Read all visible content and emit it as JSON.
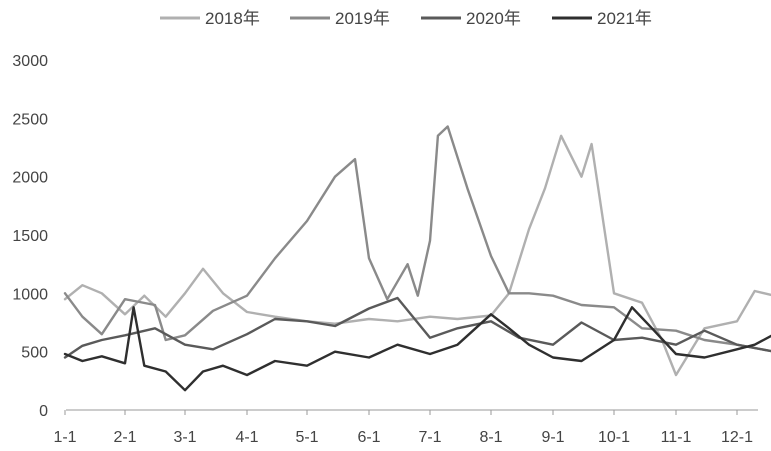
{
  "chart_data": {
    "type": "line",
    "title": "",
    "xlabel": "",
    "ylabel": "",
    "ylim": [
      0,
      3000
    ],
    "yticks": [
      "0",
      "500",
      "1000",
      "1500",
      "2000",
      "2500",
      "3000"
    ],
    "xticks": [
      "1-1",
      "2-1",
      "3-1",
      "4-1",
      "5-1",
      "6-1",
      "7-1",
      "8-1",
      "9-1",
      "10-1",
      "11-1",
      "12-1"
    ],
    "grid": false,
    "legend_position": "top",
    "series": [
      {
        "name": "2018年",
        "color": "#b0b0b0",
        "points": [
          [
            "1-1",
            950
          ],
          [
            "1-10",
            1070
          ],
          [
            "1-20",
            1000
          ],
          [
            "2-1",
            820
          ],
          [
            "2-10",
            980
          ],
          [
            "2-20",
            800
          ],
          [
            "3-1",
            1000
          ],
          [
            "3-10",
            1210
          ],
          [
            "3-20",
            1000
          ],
          [
            "4-1",
            840
          ],
          [
            "4-15",
            800
          ],
          [
            "5-1",
            760
          ],
          [
            "5-15",
            740
          ],
          [
            "6-1",
            780
          ],
          [
            "6-15",
            760
          ],
          [
            "7-1",
            800
          ],
          [
            "7-15",
            780
          ],
          [
            "8-1",
            810
          ],
          [
            "8-10",
            1000
          ],
          [
            "8-20",
            1550
          ],
          [
            "8-28",
            1900
          ],
          [
            "9-5",
            2350
          ],
          [
            "9-15",
            2000
          ],
          [
            "9-20",
            2280
          ],
          [
            "10-1",
            1000
          ],
          [
            "10-15",
            920
          ],
          [
            "10-25",
            600
          ],
          [
            "11-1",
            300
          ],
          [
            "11-15",
            700
          ],
          [
            "12-1",
            760
          ],
          [
            "12-10",
            1020
          ],
          [
            "12-20",
            980
          ]
        ]
      },
      {
        "name": "2019年",
        "color": "#8a8a8a",
        "points": [
          [
            "1-1",
            1000
          ],
          [
            "1-10",
            800
          ],
          [
            "1-20",
            650
          ],
          [
            "2-1",
            950
          ],
          [
            "2-15",
            900
          ],
          [
            "2-20",
            600
          ],
          [
            "3-1",
            640
          ],
          [
            "3-15",
            850
          ],
          [
            "4-1",
            980
          ],
          [
            "4-15",
            1300
          ],
          [
            "5-1",
            1620
          ],
          [
            "5-15",
            2000
          ],
          [
            "5-25",
            2150
          ],
          [
            "6-1",
            1300
          ],
          [
            "6-10",
            950
          ],
          [
            "6-20",
            1250
          ],
          [
            "6-25",
            980
          ],
          [
            "7-1",
            1450
          ],
          [
            "7-5",
            2350
          ],
          [
            "7-10",
            2430
          ],
          [
            "7-20",
            1900
          ],
          [
            "8-1",
            1320
          ],
          [
            "8-10",
            1000
          ],
          [
            "8-20",
            1000
          ],
          [
            "9-1",
            980
          ],
          [
            "9-15",
            900
          ],
          [
            "10-1",
            880
          ],
          [
            "10-15",
            700
          ],
          [
            "11-1",
            680
          ],
          [
            "11-15",
            600
          ],
          [
            "12-1",
            560
          ],
          [
            "12-20",
            500
          ]
        ]
      },
      {
        "name": "2020年",
        "color": "#5a5a5a",
        "points": [
          [
            "1-1",
            450
          ],
          [
            "1-10",
            550
          ],
          [
            "1-20",
            600
          ],
          [
            "2-1",
            640
          ],
          [
            "2-15",
            700
          ],
          [
            "3-1",
            560
          ],
          [
            "3-15",
            520
          ],
          [
            "4-1",
            650
          ],
          [
            "4-15",
            780
          ],
          [
            "5-1",
            760
          ],
          [
            "5-15",
            720
          ],
          [
            "6-1",
            870
          ],
          [
            "6-15",
            960
          ],
          [
            "7-1",
            620
          ],
          [
            "7-15",
            700
          ],
          [
            "8-1",
            760
          ],
          [
            "8-15",
            620
          ],
          [
            "9-1",
            560
          ],
          [
            "9-15",
            750
          ],
          [
            "10-1",
            600
          ],
          [
            "10-15",
            620
          ],
          [
            "11-1",
            560
          ],
          [
            "11-15",
            680
          ],
          [
            "12-1",
            560
          ],
          [
            "12-20",
            500
          ]
        ]
      },
      {
        "name": "2021年",
        "color": "#2f2f2f",
        "points": [
          [
            "1-1",
            480
          ],
          [
            "1-10",
            420
          ],
          [
            "1-20",
            460
          ],
          [
            "2-1",
            400
          ],
          [
            "2-5",
            880
          ],
          [
            "2-10",
            380
          ],
          [
            "2-20",
            330
          ],
          [
            "3-1",
            170
          ],
          [
            "3-10",
            330
          ],
          [
            "3-20",
            380
          ],
          [
            "4-1",
            300
          ],
          [
            "4-15",
            420
          ],
          [
            "5-1",
            380
          ],
          [
            "5-15",
            500
          ],
          [
            "6-1",
            450
          ],
          [
            "6-15",
            560
          ],
          [
            "7-1",
            480
          ],
          [
            "7-15",
            560
          ],
          [
            "8-1",
            820
          ],
          [
            "8-10",
            700
          ],
          [
            "8-20",
            560
          ],
          [
            "9-1",
            450
          ],
          [
            "9-15",
            420
          ],
          [
            "10-1",
            600
          ],
          [
            "10-10",
            880
          ],
          [
            "10-20",
            700
          ],
          [
            "11-1",
            480
          ],
          [
            "11-15",
            450
          ],
          [
            "12-1",
            520
          ],
          [
            "12-10",
            560
          ],
          [
            "12-20",
            650
          ]
        ]
      }
    ]
  }
}
